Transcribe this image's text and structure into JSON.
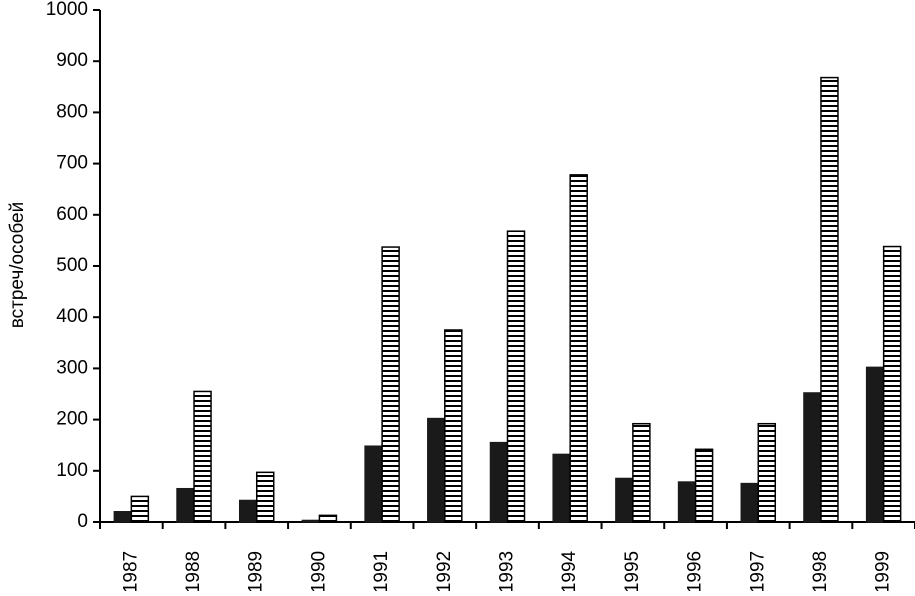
{
  "chart_data": {
    "type": "bar",
    "y_label": "встреч/особей",
    "categories": [
      "1987",
      "1988",
      "1989",
      "1990",
      "1991",
      "1992",
      "1993",
      "1994",
      "1995",
      "1996",
      "1997",
      "1998",
      "1999"
    ],
    "series": [
      {
        "color": "#1a1a1a",
        "pattern": "solid",
        "values": [
          20,
          65,
          42,
          3,
          148,
          202,
          155,
          132,
          85,
          78,
          75,
          252,
          302
        ]
      },
      {
        "color": "#000000",
        "pattern": "horizontal-stripes",
        "values": [
          50,
          255,
          97,
          13,
          537,
          375,
          568,
          678,
          192,
          142,
          192,
          868,
          538
        ]
      }
    ],
    "ylim": [
      0,
      1000
    ],
    "yticks": [
      0,
      100,
      200,
      300,
      400,
      500,
      600,
      700,
      800,
      900,
      1000
    ],
    "grid": false
  }
}
